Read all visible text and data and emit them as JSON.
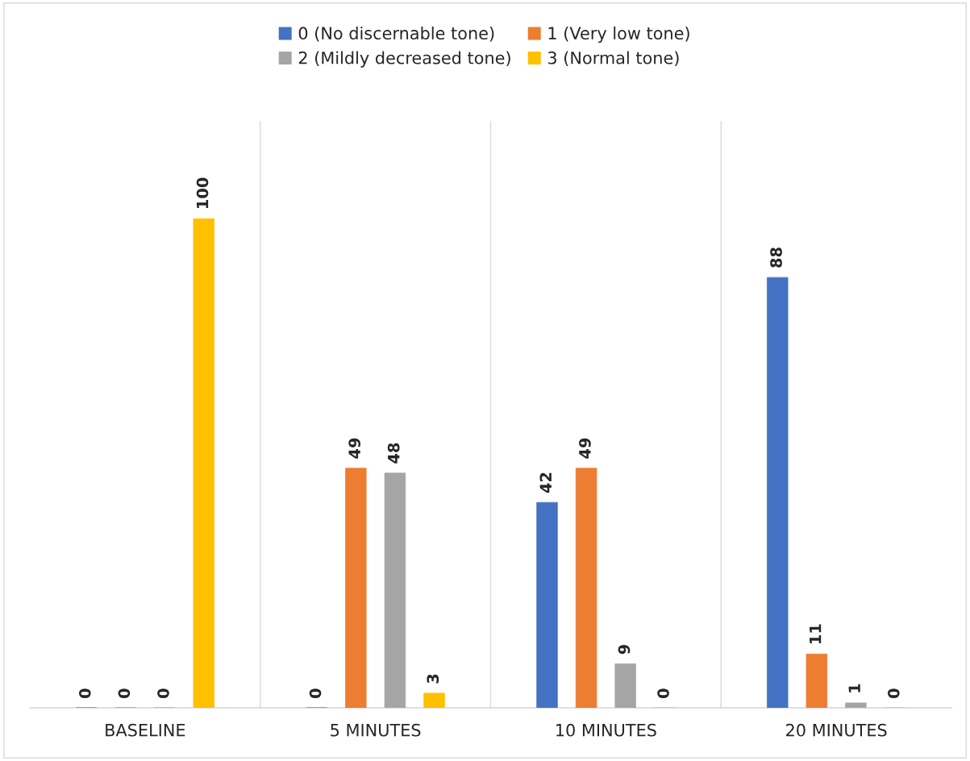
{
  "chart_data": {
    "type": "bar",
    "categories": [
      "BASELINE",
      "5 MINUTES",
      "10 MINUTES",
      "20 MINUTES"
    ],
    "series": [
      {
        "name": "0 (No discernable tone)",
        "color": "#4472c4",
        "values": [
          0,
          0,
          42,
          88
        ]
      },
      {
        "name": "1 (Very low tone)",
        "color": "#ed7d31",
        "values": [
          0,
          49,
          49,
          11
        ]
      },
      {
        "name": "2 (Mildly decreased tone)",
        "color": "#a5a5a5",
        "values": [
          0,
          48,
          9,
          1
        ]
      },
      {
        "name": "3 (Normal tone)",
        "color": "#ffc000",
        "values": [
          100,
          3,
          0,
          0
        ]
      }
    ],
    "data_labels": true,
    "grid": "x",
    "legend": "top"
  }
}
